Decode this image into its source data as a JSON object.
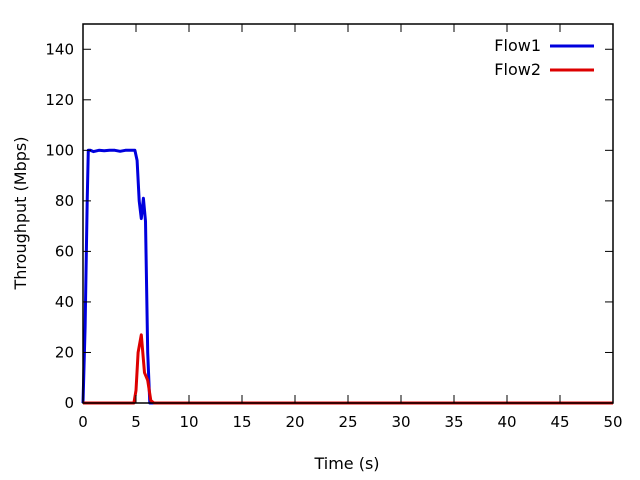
{
  "chart_data": {
    "type": "line",
    "title": "",
    "xlabel": "Time (s)",
    "ylabel": "Throughput (Mbps)",
    "xlim": [
      0,
      50
    ],
    "ylim": [
      0,
      150
    ],
    "xticks": [
      0,
      5,
      10,
      15,
      20,
      25,
      30,
      35,
      40,
      45,
      50
    ],
    "yticks": [
      0,
      20,
      40,
      60,
      80,
      100,
      120,
      140
    ],
    "grid": false,
    "legend_position": "top-right",
    "series": [
      {
        "name": "Flow1",
        "color": "#0000dd",
        "x": [
          0,
          0.2,
          0.4,
          0.5,
          0.7,
          1.0,
          1.5,
          2.0,
          2.5,
          3.0,
          3.5,
          4.0,
          4.5,
          4.9,
          5.1,
          5.3,
          5.5,
          5.7,
          5.9,
          6.1,
          6.3,
          7,
          10,
          20,
          30,
          40,
          50
        ],
        "y": [
          0,
          30,
          80,
          100,
          100,
          99.5,
          100,
          99.8,
          100,
          100,
          99.6,
          100,
          100,
          100,
          96,
          80,
          73,
          81,
          72,
          20,
          0,
          0,
          0,
          0,
          0,
          0,
          0
        ]
      },
      {
        "name": "Flow2",
        "color": "#dd0000",
        "x": [
          0,
          4.8,
          5.0,
          5.2,
          5.5,
          5.8,
          6.1,
          6.4,
          6.7,
          7,
          10,
          20,
          30,
          40,
          50
        ],
        "y": [
          0,
          0,
          5,
          20,
          27,
          12,
          9,
          1,
          0,
          0,
          0,
          0,
          0,
          0,
          0
        ]
      }
    ]
  }
}
